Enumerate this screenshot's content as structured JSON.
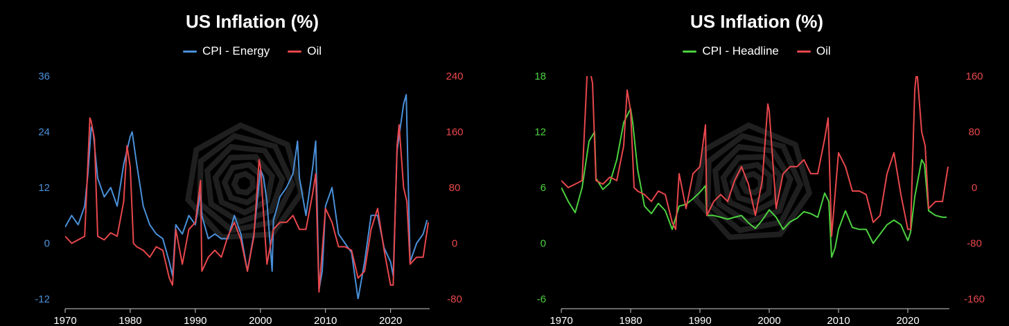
{
  "colors": {
    "background": "#000000",
    "energy": "#4a90d9",
    "headline": "#4cd13f",
    "oil": "#e8474c",
    "axis_text": "#ffffff",
    "watermark": "#1f1f1f"
  },
  "chart_data": [
    {
      "type": "line",
      "title": "US Inflation (%)",
      "legend": [
        "CPI - Energy",
        "Oil"
      ],
      "x_ticks": [
        1970,
        1980,
        1990,
        2000,
        2010,
        2020
      ],
      "xlim": [
        1970,
        2026
      ],
      "left_axis": {
        "ylim": [
          -12,
          36
        ],
        "ticks": [
          36,
          24,
          12,
          0,
          -12
        ]
      },
      "right_axis": {
        "ylim": [
          -80,
          240
        ],
        "ticks": [
          240,
          160,
          80,
          0,
          -80
        ]
      },
      "series": [
        {
          "name": "CPI - Energy",
          "axis": "left",
          "color": "#4a90d9",
          "x": [
            1970,
            1971,
            1972,
            1973,
            1973.5,
            1974,
            1974.3,
            1975,
            1976,
            1977,
            1978,
            1979,
            1980,
            1980.3,
            1981,
            1982,
            1983,
            1984,
            1985,
            1986,
            1986.5,
            1987,
            1988,
            1989,
            1990,
            1990.8,
            1991,
            1992,
            1993,
            1994,
            1995,
            1996,
            1997,
            1998,
            1999,
            2000,
            2000.5,
            2001,
            2001.8,
            2002,
            2003,
            2004,
            2005,
            2005.7,
            2006,
            2007,
            2008,
            2008.5,
            2009,
            2009.5,
            2010,
            2011,
            2012,
            2013,
            2014,
            2015,
            2016,
            2017,
            2018,
            2019,
            2020,
            2020.4,
            2021,
            2022,
            2022.4,
            2023,
            2024,
            2025,
            2025.6
          ],
          "y": [
            3.5,
            6,
            4,
            8,
            15,
            25,
            24,
            14,
            10,
            12,
            8,
            17,
            23,
            24,
            17,
            8,
            4,
            2,
            1,
            -4,
            -7,
            4,
            2,
            6,
            4,
            11,
            6,
            1,
            2,
            1,
            1,
            6,
            2,
            -6,
            2,
            16,
            14,
            9,
            -6,
            5,
            10,
            12,
            15,
            22,
            14,
            6,
            16,
            22,
            -10,
            -6,
            8,
            12,
            2,
            0,
            -2,
            -12,
            -4,
            6,
            6,
            -1,
            -4,
            -7,
            20,
            30,
            32,
            -4,
            0,
            2,
            5
          ]
        },
        {
          "name": "Oil",
          "axis": "right",
          "color": "#e8474c",
          "x": [
            1970,
            1971,
            1972,
            1973,
            1973.8,
            1974,
            1974.5,
            1975,
            1976,
            1977,
            1978,
            1979,
            1979.5,
            1980,
            1980.5,
            1981,
            1982,
            1983,
            1984,
            1985,
            1986,
            1986.5,
            1987,
            1988,
            1989,
            1990,
            1990.8,
            1991,
            1992,
            1993,
            1994,
            1995,
            1996,
            1997,
            1998,
            1999,
            1999.8,
            2000,
            2001,
            2002,
            2003,
            2004,
            2005,
            2006,
            2007,
            2008,
            2008.5,
            2009,
            2010,
            2011,
            2012,
            2013,
            2014,
            2015,
            2016,
            2017,
            2018,
            2019,
            2020,
            2020.4,
            2021,
            2021.3,
            2022,
            2022.5,
            2023,
            2024,
            2025,
            2025.8
          ],
          "y": [
            10,
            0,
            5,
            10,
            180,
            175,
            150,
            10,
            5,
            15,
            10,
            60,
            140,
            110,
            0,
            -5,
            -10,
            -20,
            -5,
            -10,
            -50,
            -60,
            20,
            -30,
            20,
            30,
            90,
            -40,
            -20,
            -10,
            -20,
            10,
            30,
            5,
            -40,
            10,
            120,
            110,
            -30,
            20,
            30,
            30,
            40,
            20,
            20,
            70,
            100,
            -70,
            50,
            30,
            -5,
            -5,
            -10,
            -50,
            -40,
            20,
            50,
            -10,
            -60,
            -60,
            140,
            170,
            80,
            60,
            -30,
            -20,
            -20,
            30
          ]
        }
      ]
    },
    {
      "type": "line",
      "title": "US Inflation (%)",
      "legend": [
        "CPI - Headline",
        "Oil"
      ],
      "x_ticks": [
        1970,
        1980,
        1990,
        2000,
        2010,
        2020
      ],
      "xlim": [
        1970,
        2026
      ],
      "left_axis": {
        "ylim": [
          -6,
          18
        ],
        "ticks": [
          18,
          12,
          6,
          0,
          -6
        ]
      },
      "right_axis": {
        "ylim": [
          -160,
          160
        ],
        "ticks": [
          160,
          80,
          0,
          -80,
          -160
        ]
      },
      "series": [
        {
          "name": "CPI - Headline",
          "axis": "left",
          "color": "#4cd13f",
          "x": [
            1970,
            1971,
            1972,
            1973,
            1974,
            1974.8,
            1975,
            1976,
            1977,
            1978,
            1979,
            1980,
            1980.3,
            1981,
            1982,
            1983,
            1984,
            1985,
            1986,
            1987,
            1988,
            1989,
            1990,
            1990.8,
            1991,
            1992,
            1993,
            1994,
            1995,
            1996,
            1997,
            1998,
            1999,
            2000,
            2001,
            2002,
            2003,
            2004,
            2005,
            2006,
            2007,
            2008,
            2008.6,
            2009,
            2009.5,
            2010,
            2011,
            2012,
            2013,
            2014,
            2015,
            2016,
            2017,
            2018,
            2019,
            2020,
            2020.4,
            2021,
            2022,
            2022.4,
            2023,
            2024,
            2025,
            2025.6
          ],
          "y": [
            6,
            4.5,
            3.3,
            6,
            11,
            12,
            7,
            5.8,
            6.5,
            9,
            13,
            14.5,
            13,
            8,
            4,
            3.2,
            4.3,
            3.5,
            1.5,
            4,
            4.2,
            4.8,
            5.5,
            6.2,
            3,
            3,
            2.8,
            2.6,
            2.8,
            3,
            2.2,
            1.6,
            2.5,
            3.6,
            2.8,
            1.5,
            2.3,
            2.7,
            3.4,
            3.2,
            2.8,
            5.4,
            4.5,
            -1.5,
            -0.5,
            1.5,
            3.5,
            1.7,
            1.5,
            1.5,
            0,
            1,
            2,
            2.5,
            2,
            0.3,
            1.2,
            5,
            9,
            8.5,
            3.5,
            3,
            2.8,
            2.8
          ]
        },
        {
          "name": "Oil",
          "axis": "right",
          "color": "#e8474c",
          "x": [
            1970,
            1971,
            1972,
            1973,
            1973.8,
            1974,
            1974.5,
            1975,
            1976,
            1977,
            1978,
            1979,
            1979.5,
            1980,
            1980.5,
            1981,
            1982,
            1983,
            1984,
            1985,
            1986,
            1986.5,
            1987,
            1988,
            1989,
            1990,
            1990.8,
            1991,
            1992,
            1993,
            1994,
            1995,
            1996,
            1997,
            1998,
            1999,
            1999.8,
            2000,
            2001,
            2002,
            2003,
            2004,
            2005,
            2006,
            2007,
            2008,
            2008.5,
            2009,
            2010,
            2011,
            2012,
            2013,
            2014,
            2015,
            2016,
            2017,
            2018,
            2019,
            2020,
            2020.4,
            2021,
            2021.3,
            2022,
            2022.5,
            2023,
            2024,
            2025,
            2025.8
          ],
          "y": [
            10,
            0,
            5,
            10,
            180,
            175,
            150,
            10,
            5,
            15,
            10,
            60,
            140,
            110,
            0,
            -5,
            -10,
            -20,
            -5,
            -10,
            -50,
            -60,
            20,
            -30,
            20,
            30,
            90,
            -40,
            -20,
            -10,
            -20,
            10,
            30,
            5,
            -40,
            10,
            120,
            110,
            -30,
            20,
            30,
            30,
            40,
            20,
            20,
            70,
            100,
            -70,
            50,
            30,
            -5,
            -5,
            -10,
            -50,
            -40,
            20,
            50,
            -10,
            -60,
            -60,
            140,
            170,
            80,
            60,
            -30,
            -20,
            -20,
            30
          ]
        }
      ]
    }
  ]
}
